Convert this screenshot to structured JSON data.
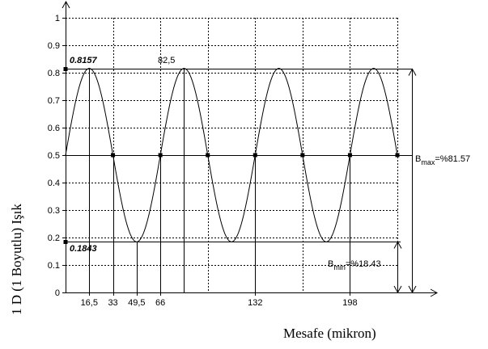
{
  "chart_data": {
    "type": "line",
    "xlabel": "Mesafe (mikron)",
    "ylabel": "1 D (1 Boyutlu) Işık",
    "ylim": [
      0,
      1
    ],
    "xlim": [
      0,
      231
    ],
    "grid": true,
    "y_ticks": [
      "0",
      "0.1",
      "0.2",
      "0.3",
      "0.4",
      "0.5",
      "0.6",
      "0.7",
      "0.8",
      "0.9",
      "1"
    ],
    "x_tick_labels": [
      {
        "x": 16.5,
        "label": "16,5"
      },
      {
        "x": 33,
        "label": "33"
      },
      {
        "x": 49.5,
        "label": "49,5"
      },
      {
        "x": 66,
        "label": "66"
      },
      {
        "x": 132,
        "label": "132"
      },
      {
        "x": 198,
        "label": "198"
      }
    ],
    "x_grid": [
      33,
      66,
      99,
      132,
      165,
      198,
      231
    ],
    "series": [
      {
        "function": "0.5 + 0.3157*sin(2*pi*x/66)",
        "x_range": [
          0,
          231
        ],
        "mean": 0.5,
        "amplitude": 0.3157,
        "period": 66
      }
    ],
    "crossing_points": [
      33,
      66,
      99,
      132,
      165,
      198,
      231
    ],
    "max_value": 0.8157,
    "min_value": 0.1843,
    "annotations": {
      "max_label": "0.8157",
      "min_label": "0.1843",
      "peak_label": "82,5",
      "bmax_base": "B",
      "bmax_sub": "max",
      "bmax_value": "=%81.57",
      "bmin_base": "B",
      "bmin_sub": "min",
      "bmin_value": "=%18.43"
    }
  }
}
